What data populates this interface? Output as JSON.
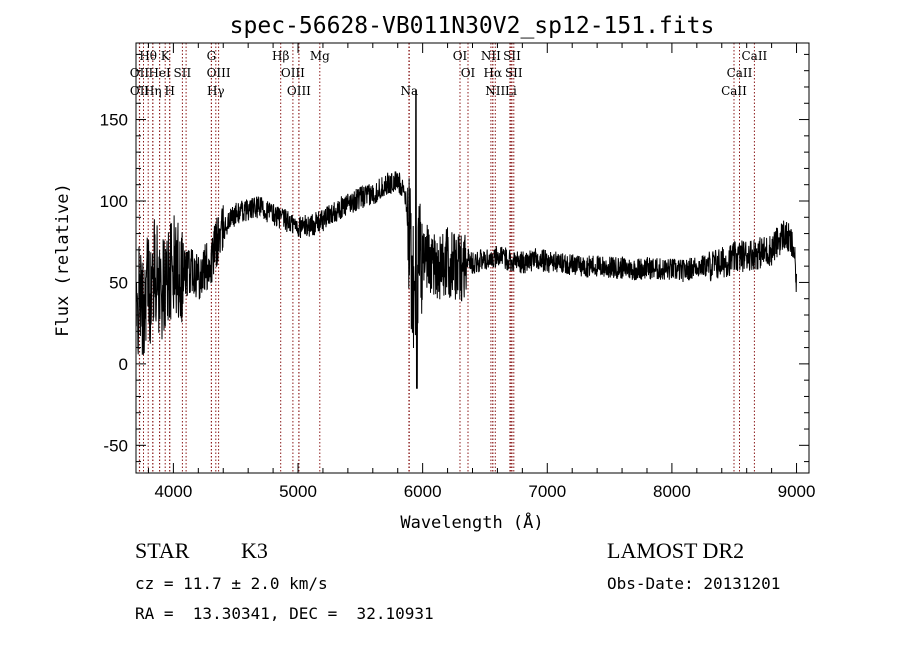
{
  "chart_data": {
    "type": "line",
    "title": "spec-56628-VB011N30V2_sp12-151.fits",
    "xlabel": "Wavelength (Å)",
    "ylabel": "Flux (relative)",
    "xlim": [
      3700,
      9100
    ],
    "ylim": [
      -67,
      197
    ],
    "xticks": [
      4000,
      5000,
      6000,
      7000,
      8000,
      9000
    ],
    "yticks": [
      -50,
      0,
      50,
      100,
      150
    ],
    "grid": false,
    "line_color": "#000000",
    "marker_color": "#8b1a1a",
    "spectrum_anchors": {
      "x": [
        3700,
        3730,
        3760,
        3790,
        3820,
        3850,
        3880,
        3920,
        3960,
        4000,
        4050,
        4100,
        4150,
        4200,
        4250,
        4300,
        4350,
        4400,
        4450,
        4500,
        4600,
        4700,
        4800,
        4850,
        4900,
        4950,
        5000,
        5100,
        5200,
        5300,
        5400,
        5500,
        5600,
        5700,
        5800,
        5850,
        5880,
        5900,
        5920,
        5940,
        5960,
        5980,
        6000,
        6050,
        6100,
        6150,
        6200,
        6250,
        6300,
        6350,
        6400,
        6500,
        6600,
        6700,
        6800,
        6900,
        7000,
        7100,
        7200,
        7300,
        7400,
        7500,
        7600,
        7700,
        7800,
        7900,
        8000,
        8100,
        8200,
        8300,
        8400,
        8500,
        8600,
        8700,
        8800,
        8850,
        8900,
        8950,
        8980,
        9000
      ],
      "y": [
        20,
        45,
        30,
        55,
        40,
        60,
        50,
        45,
        55,
        60,
        58,
        55,
        60,
        55,
        58,
        62,
        75,
        82,
        88,
        92,
        95,
        96,
        92,
        90,
        88,
        86,
        84,
        85,
        88,
        94,
        98,
        102,
        104,
        110,
        112,
        108,
        90,
        70,
        50,
        30,
        55,
        60,
        68,
        65,
        62,
        60,
        62,
        60,
        58,
        65,
        62,
        64,
        66,
        64,
        62,
        64,
        63,
        62,
        61,
        60,
        60,
        59,
        59,
        58,
        59,
        58,
        58,
        57,
        60,
        60,
        62,
        65,
        67,
        68,
        70,
        75,
        80,
        75,
        70,
        45
      ]
    },
    "spectral_lines": [
      {
        "label": "Hθ",
        "x": 3798,
        "row": 1
      },
      {
        "label": "K",
        "x": 3934,
        "row": 1
      },
      {
        "label": "G",
        "x": 4305,
        "row": 1
      },
      {
        "label": "Hβ",
        "x": 4861,
        "row": 1
      },
      {
        "label": "Mg",
        "x": 5175,
        "row": 1
      },
      {
        "label": "OI",
        "x": 6300,
        "row": 1
      },
      {
        "label": "NII",
        "x": 6548,
        "row": 1
      },
      {
        "label": "SII",
        "x": 6717,
        "row": 1
      },
      {
        "label": "CaII",
        "x": 8662,
        "row": 1
      },
      {
        "label": "OII",
        "x": 3727,
        "row": 2
      },
      {
        "label": "HeI",
        "x": 3889,
        "row": 2
      },
      {
        "label": "SII",
        "x": 4072,
        "row": 2
      },
      {
        "label": "OIII",
        "x": 4363,
        "row": 2
      },
      {
        "label": "OIII",
        "x": 4959,
        "row": 2
      },
      {
        "label": "OI",
        "x": 6364,
        "row": 2
      },
      {
        "label": "Hα",
        "x": 6563,
        "row": 2
      },
      {
        "label": "SII",
        "x": 6731,
        "row": 2
      },
      {
        "label": "CaII",
        "x": 8542,
        "row": 2
      },
      {
        "label": "OII",
        "x": 3729,
        "row": 3
      },
      {
        "label": "Hη",
        "x": 3835,
        "row": 3
      },
      {
        "label": "H",
        "x": 3970,
        "row": 3
      },
      {
        "label": "Hγ",
        "x": 4340,
        "row": 3
      },
      {
        "label": "OIII",
        "x": 5007,
        "row": 3
      },
      {
        "label": "Na",
        "x": 5893,
        "row": 3
      },
      {
        "label": "NII",
        "x": 6583,
        "row": 3
      },
      {
        "label": "Li",
        "x": 6708,
        "row": 3
      },
      {
        "label": "CaII",
        "x": 8498,
        "row": 3
      }
    ],
    "extra_vlines": [
      3760,
      3835,
      3889,
      3970,
      4102,
      4305,
      5007,
      5890,
      6300,
      6563,
      6700
    ]
  },
  "info": {
    "object_class": "STAR",
    "subclass": "K3",
    "survey": "LAMOST DR2",
    "redshift": "cz = 11.7 ± 2.0 km/s",
    "obs_date": "Obs-Date: 20131201",
    "coords": "RA =  13.30341, DEC =  32.10931"
  }
}
